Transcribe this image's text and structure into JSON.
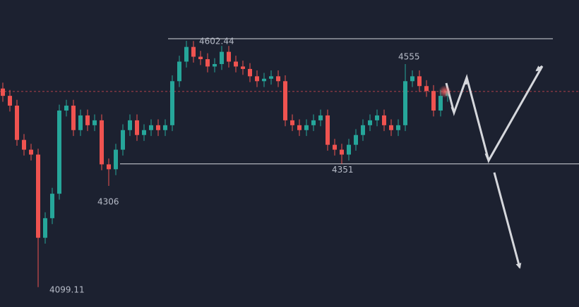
{
  "chart_data": {
    "type": "candlestick",
    "open": [
      4505,
      4490,
      4470,
      4400,
      4380,
      4370,
      4200,
      4240,
      4290,
      4460,
      4470,
      4420,
      4450,
      4430,
      4440,
      4350,
      4340,
      4380,
      4420,
      4440,
      4410,
      4420,
      4430,
      4420,
      4430,
      4520,
      4560,
      4590,
      4570,
      4565,
      4550,
      4555,
      4580,
      4560,
      4550,
      4545,
      4530,
      4520,
      4525,
      4530,
      4520,
      4440,
      4430,
      4420,
      4430,
      4440,
      4450,
      4390,
      4380,
      4370,
      4390,
      4410,
      4430,
      4440,
      4450,
      4430,
      4420,
      4430,
      4520,
      4530,
      4510,
      4500,
      4460,
      4490
    ],
    "high": [
      4517,
      4502,
      4482,
      4412,
      4392,
      4382,
      4252,
      4302,
      4472,
      4482,
      4482,
      4462,
      4462,
      4452,
      4452,
      4362,
      4392,
      4432,
      4452,
      4452,
      4432,
      4442,
      4442,
      4442,
      4532,
      4572,
      4602.44,
      4602,
      4582,
      4577,
      4567,
      4592,
      4592,
      4572,
      4562,
      4557,
      4542,
      4537,
      4542,
      4542,
      4532,
      4452,
      4442,
      4442,
      4452,
      4462,
      4462,
      4402,
      4392,
      4402,
      4422,
      4442,
      4452,
      4462,
      4462,
      4442,
      4442,
      4555,
      4542,
      4542,
      4522,
      4512,
      4502,
      4512
    ],
    "low": [
      4478,
      4458,
      4388,
      4368,
      4358,
      4099.11,
      4188,
      4228,
      4278,
      4448,
      4408,
      4408,
      4418,
      4418,
      4338,
      4306,
      4328,
      4368,
      4408,
      4398,
      4398,
      4408,
      4408,
      4408,
      4418,
      4508,
      4548,
      4558,
      4553,
      4538,
      4538,
      4543,
      4548,
      4538,
      4533,
      4518,
      4508,
      4508,
      4513,
      4508,
      4428,
      4418,
      4408,
      4408,
      4418,
      4428,
      4378,
      4368,
      4351,
      4358,
      4378,
      4398,
      4418,
      4428,
      4418,
      4408,
      4408,
      4418,
      4508,
      4498,
      4488,
      4448,
      4448,
      4478
    ],
    "close": [
      4490,
      4470,
      4400,
      4380,
      4370,
      4200,
      4240,
      4290,
      4460,
      4470,
      4420,
      4450,
      4430,
      4440,
      4350,
      4340,
      4380,
      4420,
      4440,
      4410,
      4420,
      4430,
      4420,
      4430,
      4520,
      4560,
      4590,
      4570,
      4565,
      4550,
      4555,
      4580,
      4560,
      4550,
      4545,
      4530,
      4520,
      4525,
      4530,
      4520,
      4440,
      4430,
      4420,
      4430,
      4440,
      4450,
      4390,
      4380,
      4370,
      4390,
      4410,
      4430,
      4440,
      4450,
      4430,
      4420,
      4430,
      4520,
      4530,
      4510,
      4500,
      4460,
      4490,
      4500
    ],
    "up_color": "#26a69a",
    "down_color": "#ef5350",
    "ylim": [
      4058.5,
      4685.9
    ],
    "price_line": 4499,
    "price_line_color": "#b2424a",
    "annotations": [
      {
        "value": 4602.44,
        "label": "4602.44"
      },
      {
        "value": 4555,
        "label": "4555"
      },
      {
        "value": 4351,
        "label": "4351"
      },
      {
        "value": 4306,
        "label": "4306"
      },
      {
        "value": 4099.11,
        "label": "4099.11"
      }
    ]
  }
}
